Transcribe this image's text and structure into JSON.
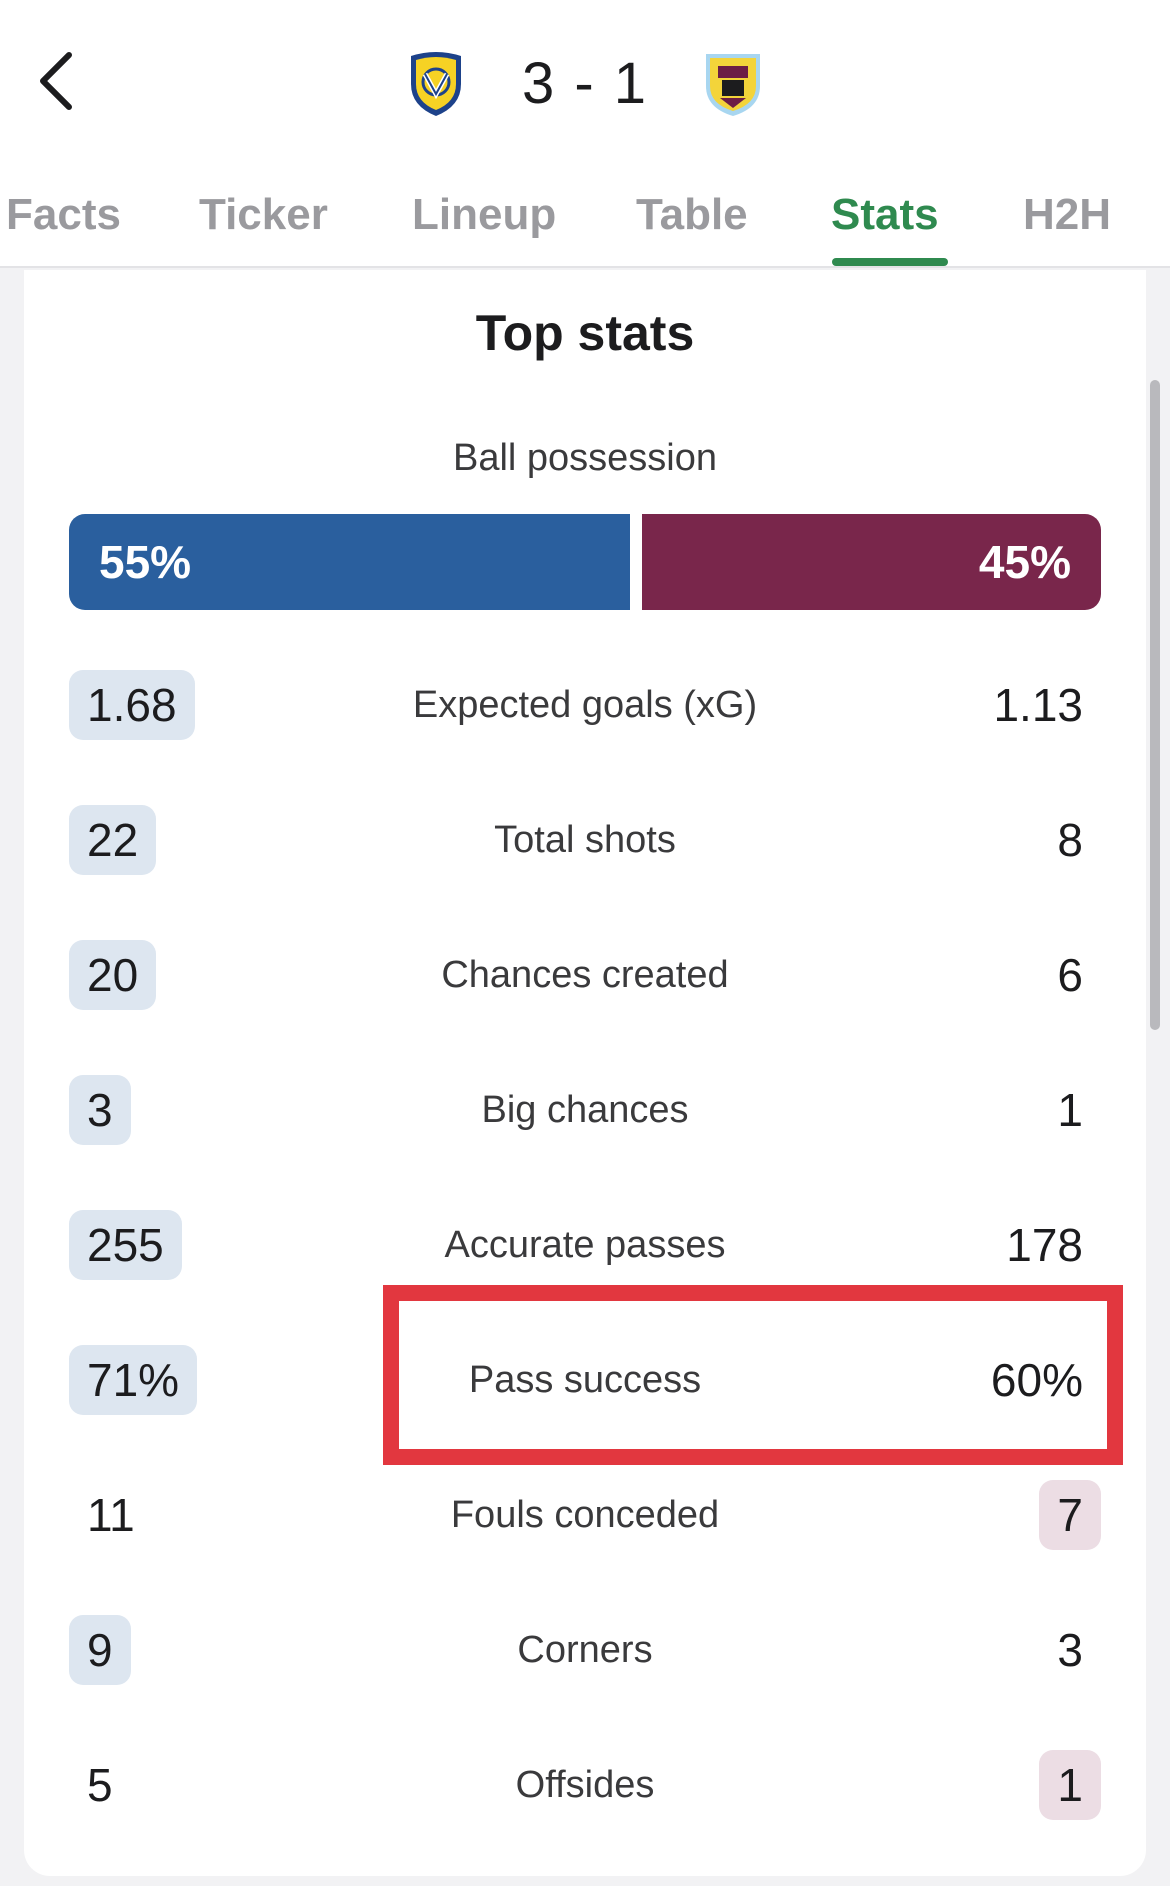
{
  "header": {
    "score": "3 - 1",
    "home_crest": "leeds-united-crest",
    "away_crest": "burnley-crest"
  },
  "tabs": [
    {
      "label": "Facts",
      "active": false
    },
    {
      "label": "Ticker",
      "active": false
    },
    {
      "label": "Lineup",
      "active": false
    },
    {
      "label": "Table",
      "active": false
    },
    {
      "label": "Stats",
      "active": true
    },
    {
      "label": "H2H",
      "active": false
    }
  ],
  "card": {
    "title": "Top stats",
    "possession": {
      "label": "Ball possession",
      "home": "55%",
      "away": "45%",
      "home_value": 55,
      "away_value": 45,
      "home_color": "#2a5f9e",
      "away_color": "#79264b"
    },
    "stats": [
      {
        "label": "Expected goals (xG)",
        "home": "1.68",
        "away": "1.13",
        "leader": "home"
      },
      {
        "label": "Total shots",
        "home": "22",
        "away": "8",
        "leader": "home"
      },
      {
        "label": "Chances created",
        "home": "20",
        "away": "6",
        "leader": "home"
      },
      {
        "label": "Big chances",
        "home": "3",
        "away": "1",
        "leader": "home"
      },
      {
        "label": "Accurate passes",
        "home": "255",
        "away": "178",
        "leader": "home"
      },
      {
        "label": "Pass success",
        "home": "71%",
        "away": "60%",
        "leader": "home"
      },
      {
        "label": "Fouls conceded",
        "home": "11",
        "away": "7",
        "leader": "away"
      },
      {
        "label": "Corners",
        "home": "9",
        "away": "3",
        "leader": "home"
      },
      {
        "label": "Offsides",
        "home": "5",
        "away": "1",
        "leader": "away"
      }
    ]
  },
  "colors": {
    "active_tab": "#2f8a4f",
    "annotation": "#e2373f"
  }
}
